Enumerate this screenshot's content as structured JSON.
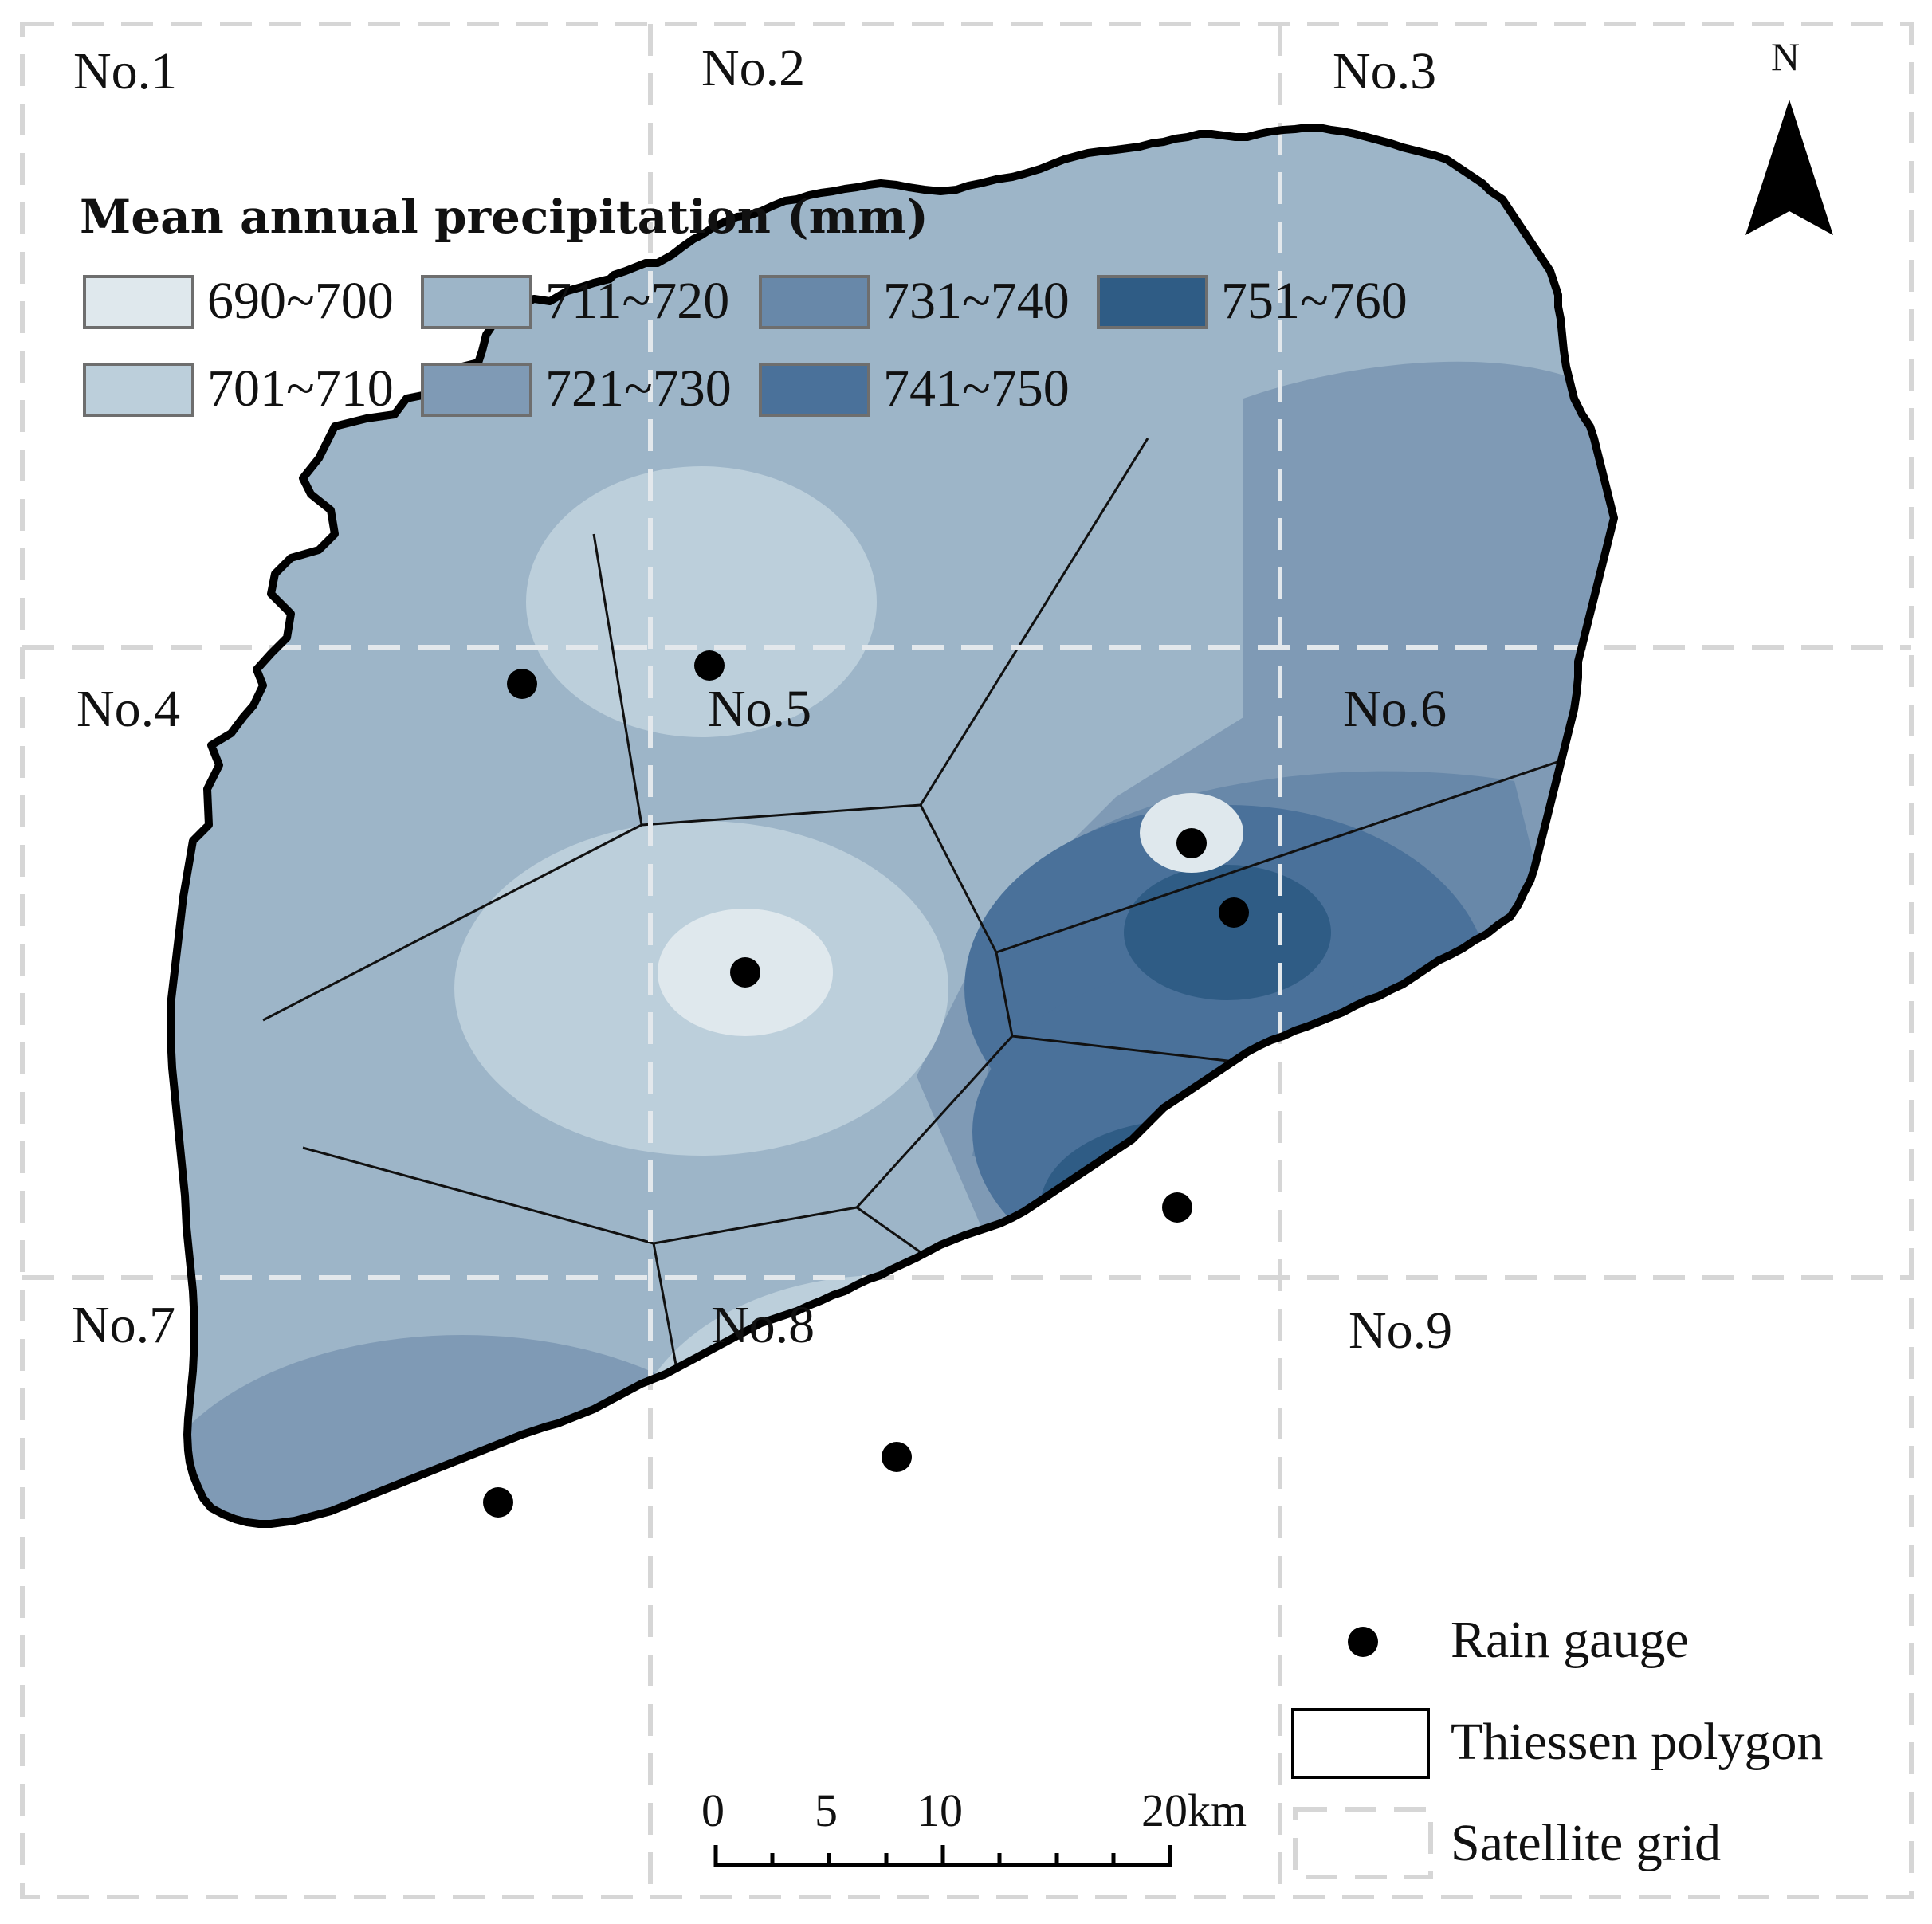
{
  "grid_labels": [
    "No.1",
    "No.2",
    "No.3",
    "No.4",
    "No.5",
    "No.6",
    "No.7",
    "No.8",
    "No.9"
  ],
  "legend": {
    "title": "Mean annual precipitation (mm)",
    "classes": [
      {
        "label": "690~700",
        "color": "#dfe8ed"
      },
      {
        "label": "711~720",
        "color": "#9db5c8"
      },
      {
        "label": "731~740",
        "color": "#6888a9"
      },
      {
        "label": "751~760",
        "color": "#2f5c85"
      },
      {
        "label": "701~710",
        "color": "#bccfdb"
      },
      {
        "label": "721~730",
        "color": "#7f9ab5"
      },
      {
        "label": "741~750",
        "color": "#4a719a"
      }
    ]
  },
  "north_arrow": {
    "label": "N",
    "icon": "north-arrow-icon"
  },
  "symbol_legend": {
    "rain_gauge": "Rain gauge",
    "thiessen": "Thiessen polygon",
    "satellite_grid": "Satellite grid"
  },
  "scale_bar": {
    "ticks": [
      "0",
      "5",
      "10",
      "20km"
    ]
  },
  "gauges_count": 8
}
